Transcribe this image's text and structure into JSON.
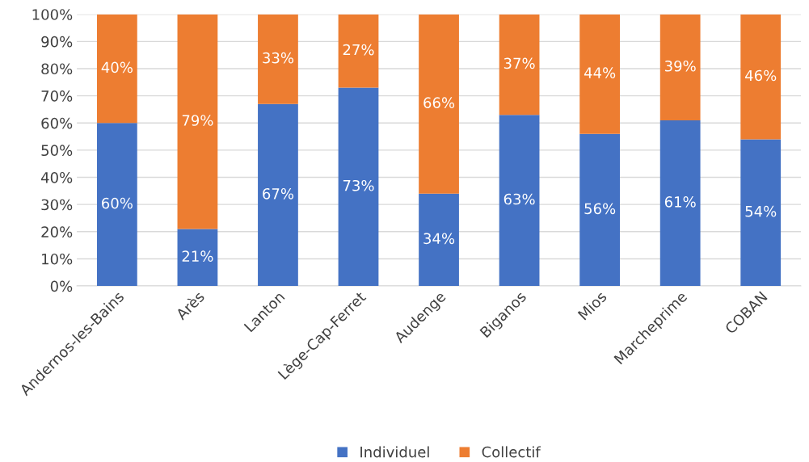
{
  "chart_data": {
    "type": "bar",
    "stacked": true,
    "categories": [
      "Andernos-les-Bains",
      "Arès",
      "Lanton",
      "Lège-Cap-Ferret",
      "Audenge",
      "Biganos",
      "Mios",
      "Marcheprime",
      "COBAN"
    ],
    "series": [
      {
        "name": "Individuel",
        "color": "#4472c4",
        "values": [
          60,
          21,
          67,
          73,
          34,
          63,
          56,
          61,
          54
        ],
        "value_labels": [
          "60%",
          "21%",
          "67%",
          "73%",
          "34%",
          "63%",
          "56%",
          "61%",
          "54%"
        ]
      },
      {
        "name": "Collectif",
        "color": "#ed7d31",
        "values": [
          40,
          79,
          33,
          27,
          66,
          37,
          44,
          39,
          46
        ],
        "value_labels": [
          "40%",
          "79%",
          "33%",
          "27%",
          "66%",
          "37%",
          "44%",
          "39%",
          "46%"
        ]
      }
    ],
    "ylim": [
      0,
      100
    ],
    "yticks": [
      {
        "value": 0,
        "label": "0%"
      },
      {
        "value": 10,
        "label": "10%"
      },
      {
        "value": 20,
        "label": "20%"
      },
      {
        "value": 30,
        "label": "30%"
      },
      {
        "value": 40,
        "label": "40%"
      },
      {
        "value": 50,
        "label": "50%"
      },
      {
        "value": 60,
        "label": "60%"
      },
      {
        "value": 70,
        "label": "70%"
      },
      {
        "value": 80,
        "label": "80%"
      },
      {
        "value": 90,
        "label": "90%"
      },
      {
        "value": 100,
        "label": "100%"
      }
    ],
    "grid": "y",
    "legend": "bottom"
  }
}
